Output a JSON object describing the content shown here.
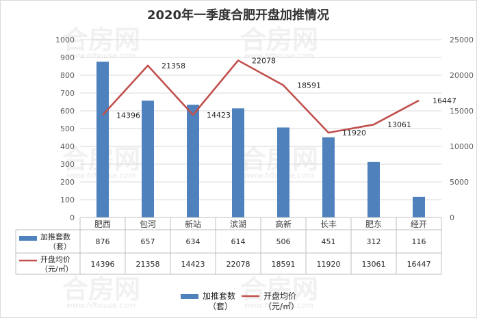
{
  "chart_data": {
    "type": "bar+line",
    "title": "2020年一季度合肥开盘加推情况",
    "categories": [
      "肥西",
      "包河",
      "新站",
      "滨湖",
      "高新",
      "长丰",
      "肥东",
      "经开"
    ],
    "series": [
      {
        "name": "加推套数（套）",
        "legend_line1": "加推套数",
        "legend_line2": "（套）",
        "type": "bar",
        "axis": "left",
        "color": "#4f81bd",
        "values": [
          876,
          657,
          634,
          614,
          506,
          451,
          312,
          116
        ]
      },
      {
        "name": "开盘均价（元/㎡）",
        "legend_line1": "开盘均价",
        "legend_line2": "（元/㎡）",
        "type": "line",
        "axis": "right",
        "color": "#c0504d",
        "values": [
          14396,
          21358,
          14423,
          22078,
          18591,
          11920,
          13061,
          16447
        ]
      }
    ],
    "y_left": {
      "min": 0,
      "max": 1000,
      "step": 100,
      "ticks": [
        "0",
        "100",
        "200",
        "300",
        "400",
        "500",
        "600",
        "700",
        "800",
        "900",
        "1000"
      ]
    },
    "y_right": {
      "min": 0,
      "max": 25000,
      "step": 5000,
      "ticks": [
        "0",
        "5000",
        "10000",
        "15000",
        "20000",
        "25000"
      ]
    },
    "grid": true,
    "legend_position": "bottom",
    "data_table": true
  },
  "watermark": {
    "text": "合房网",
    "url": "www.hfhouse.com"
  }
}
